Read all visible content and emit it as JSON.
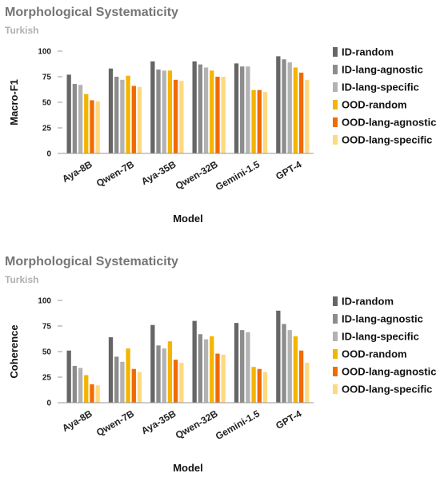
{
  "chart_data": [
    {
      "type": "bar",
      "title": "Morphological Systematicity",
      "subtitle": "Turkish",
      "xlabel": "Model",
      "ylabel": "Macro-F1",
      "ylim": [
        0,
        100
      ],
      "yticks": [
        0,
        25,
        50,
        75,
        100
      ],
      "grid": false,
      "legend_position": "right",
      "categories": [
        "Aya-8B",
        "Qwen-7B",
        "Aya-35B",
        "Qwen-32B",
        "Gemini-1.5",
        "GPT-4"
      ],
      "series": [
        {
          "name": "ID-random",
          "color": "#666666",
          "values": [
            77,
            83,
            90,
            90,
            88,
            95
          ]
        },
        {
          "name": "ID-lang-agnostic",
          "color": "#8c8c8c",
          "values": [
            68,
            75,
            82,
            87,
            85,
            92
          ]
        },
        {
          "name": "ID-lang-specific",
          "color": "#b3b3b3",
          "values": [
            67,
            72,
            81,
            84,
            85,
            89
          ]
        },
        {
          "name": "OOD-random",
          "color": "#f4b400",
          "values": [
            58,
            76,
            81,
            81,
            62,
            84
          ]
        },
        {
          "name": "OOD-lang-agnostic",
          "color": "#f06b00",
          "values": [
            52,
            66,
            72,
            75,
            62,
            79
          ]
        },
        {
          "name": "OOD-lang-specific",
          "color": "#ffd980",
          "values": [
            51,
            65,
            71,
            75,
            60,
            72
          ]
        }
      ]
    },
    {
      "type": "bar",
      "title": "Morphological Systematicity",
      "subtitle": "Turkish",
      "xlabel": "Model",
      "ylabel": "Coherence",
      "ylim": [
        0,
        100
      ],
      "yticks": [
        0,
        25,
        50,
        75,
        100
      ],
      "grid": false,
      "legend_position": "right",
      "categories": [
        "Aya-8B",
        "Qwen-7B",
        "Aya-35B",
        "Qwen-32B",
        "Gemini-1.5",
        "GPT-4"
      ],
      "series": [
        {
          "name": "ID-random",
          "color": "#666666",
          "values": [
            51,
            64,
            76,
            80,
            78,
            90
          ]
        },
        {
          "name": "ID-lang-agnostic",
          "color": "#8c8c8c",
          "values": [
            36,
            45,
            56,
            67,
            71,
            77
          ]
        },
        {
          "name": "ID-lang-specific",
          "color": "#b3b3b3",
          "values": [
            34,
            40,
            53,
            62,
            69,
            71
          ]
        },
        {
          "name": "OOD-random",
          "color": "#f4b400",
          "values": [
            27,
            53,
            60,
            65,
            35,
            65
          ]
        },
        {
          "name": "OOD-lang-agnostic",
          "color": "#f06b00",
          "values": [
            18,
            33,
            42,
            48,
            33,
            51
          ]
        },
        {
          "name": "OOD-lang-specific",
          "color": "#ffd980",
          "values": [
            17,
            30,
            39,
            47,
            30,
            39
          ]
        }
      ]
    }
  ]
}
